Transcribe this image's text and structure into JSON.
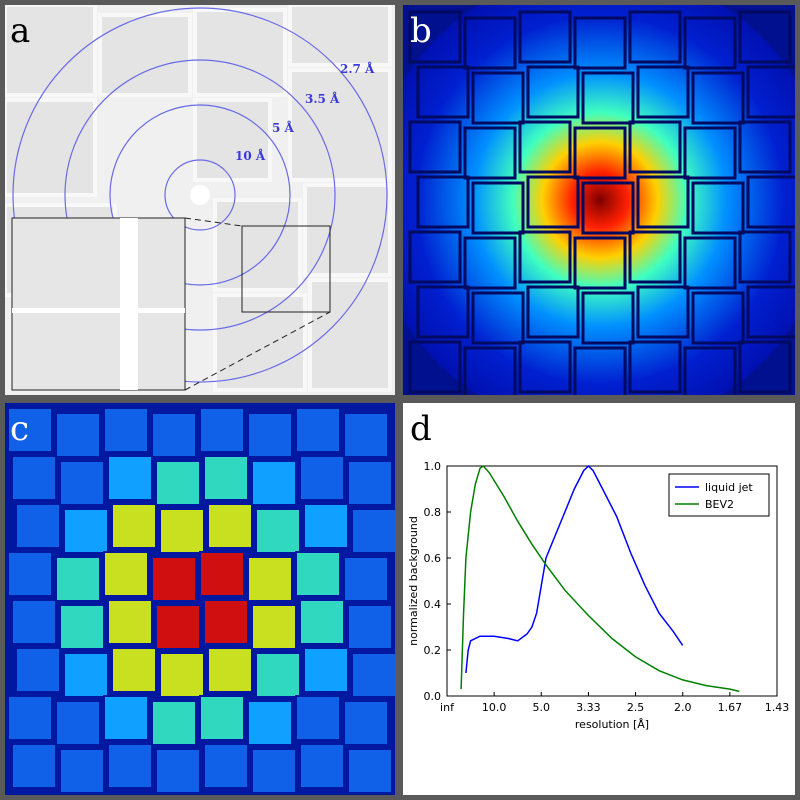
{
  "panels": {
    "a": {
      "label": "a",
      "rings": [
        "10 Å",
        "5 Å",
        "3.5 Å",
        "2.7 Å"
      ]
    },
    "b": {
      "label": "b"
    },
    "c": {
      "label": "c"
    },
    "d": {
      "label": "d"
    }
  },
  "chart_data": {
    "type": "line",
    "xlabel": "resolution [Å]",
    "ylabel": "normalized background",
    "xlim": [
      0,
      0.7
    ],
    "ylim": [
      0,
      1
    ],
    "xticks": [
      {
        "value": 0,
        "label": "inf"
      },
      {
        "value": 0.1,
        "label": "10.0"
      },
      {
        "value": 0.2,
        "label": "5.0"
      },
      {
        "value": 0.3,
        "label": "3.33"
      },
      {
        "value": 0.4,
        "label": "2.5"
      },
      {
        "value": 0.5,
        "label": "2.0"
      },
      {
        "value": 0.6,
        "label": "1.67"
      },
      {
        "value": 0.7,
        "label": "1.43"
      }
    ],
    "yticks": [
      {
        "value": 0,
        "label": "0.0"
      },
      0.2,
      0.4,
      0.6,
      0.8,
      {
        "value": 1,
        "label": "1.0"
      }
    ],
    "legend": "upper right",
    "series": [
      {
        "name": "liquid jet",
        "color": "#0000ff",
        "x": [
          0.04,
          0.045,
          0.05,
          0.07,
          0.1,
          0.13,
          0.15,
          0.17,
          0.18,
          0.19,
          0.2,
          0.21,
          0.23,
          0.25,
          0.27,
          0.29,
          0.3,
          0.31,
          0.33,
          0.36,
          0.39,
          0.42,
          0.45,
          0.48,
          0.5
        ],
        "values": [
          0.1,
          0.2,
          0.24,
          0.26,
          0.26,
          0.25,
          0.24,
          0.27,
          0.3,
          0.36,
          0.48,
          0.6,
          0.7,
          0.8,
          0.9,
          0.98,
          1.0,
          0.98,
          0.9,
          0.78,
          0.62,
          0.48,
          0.36,
          0.28,
          0.22
        ]
      },
      {
        "name": "BEV2",
        "color": "#008000",
        "x": [
          0.03,
          0.035,
          0.04,
          0.05,
          0.06,
          0.07,
          0.077,
          0.09,
          0.12,
          0.15,
          0.18,
          0.21,
          0.25,
          0.3,
          0.35,
          0.4,
          0.45,
          0.5,
          0.55,
          0.6,
          0.62
        ],
        "values": [
          0.03,
          0.35,
          0.6,
          0.8,
          0.92,
          0.99,
          1.0,
          0.97,
          0.87,
          0.76,
          0.66,
          0.57,
          0.46,
          0.35,
          0.25,
          0.17,
          0.11,
          0.07,
          0.045,
          0.03,
          0.02
        ]
      }
    ]
  }
}
